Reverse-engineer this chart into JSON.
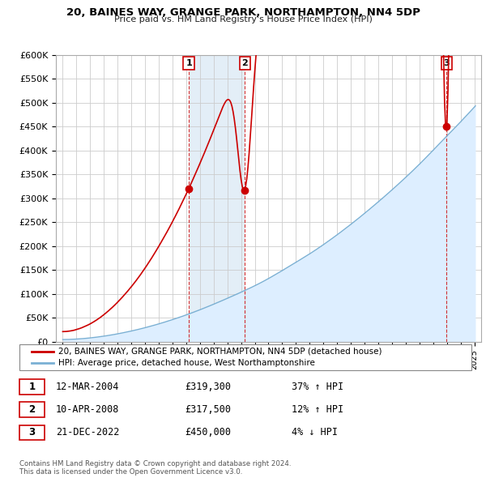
{
  "title": "20, BAINES WAY, GRANGE PARK, NORTHAMPTON, NN4 5DP",
  "subtitle": "Price paid vs. HM Land Registry's House Price Index (HPI)",
  "ylim": [
    0,
    600000
  ],
  "yticks": [
    0,
    50000,
    100000,
    150000,
    200000,
    250000,
    300000,
    350000,
    400000,
    450000,
    500000,
    550000,
    600000
  ],
  "ytick_labels": [
    "£0",
    "£50K",
    "£100K",
    "£150K",
    "£200K",
    "£250K",
    "£300K",
    "£350K",
    "£400K",
    "£450K",
    "£500K",
    "£550K",
    "£600K"
  ],
  "sale_color": "#cc0000",
  "hpi_color": "#7ab0d4",
  "hpi_fill_color": "#ddeeff",
  "background_color": "#ffffff",
  "grid_color": "#cccccc",
  "sale_label": "20, BAINES WAY, GRANGE PARK, NORTHAMPTON, NN4 5DP (detached house)",
  "hpi_label": "HPI: Average price, detached house, West Northamptonshire",
  "sale_dates": [
    2004.19,
    2008.27,
    2022.97
  ],
  "sale_prices": [
    319300,
    317500,
    450000
  ],
  "sale_labels": [
    "1",
    "2",
    "3"
  ],
  "table_rows": [
    {
      "num": "1",
      "date": "12-MAR-2004",
      "price": "£319,300",
      "hpi": "37% ↑ HPI"
    },
    {
      "num": "2",
      "date": "10-APR-2008",
      "price": "£317,500",
      "hpi": "12% ↑ HPI"
    },
    {
      "num": "3",
      "date": "21-DEC-2022",
      "price": "£450,000",
      "hpi": "4% ↓ HPI"
    }
  ],
  "footer": "Contains HM Land Registry data © Crown copyright and database right 2024.\nThis data is licensed under the Open Government Licence v3.0.",
  "xmin": 1994.5,
  "xmax": 2025.5
}
